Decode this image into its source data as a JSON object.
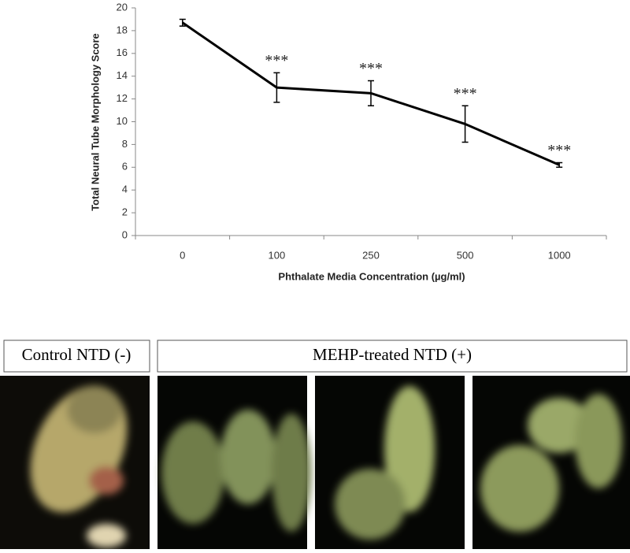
{
  "chart_data": {
    "type": "line",
    "x_label": "Phthalate Media Concentration (µg/ml)",
    "y_label": "Total Neural Tube Morphology Score",
    "categories": [
      "0",
      "100",
      "250",
      "500",
      "1000"
    ],
    "series": [
      {
        "color": "#000000",
        "values": [
          18.7,
          13.0,
          12.5,
          9.8,
          6.2
        ],
        "errors": [
          0.3,
          1.3,
          1.1,
          1.6,
          0.2
        ]
      }
    ],
    "ylim": [
      0,
      20
    ],
    "yticks": [
      0,
      2,
      4,
      6,
      8,
      10,
      12,
      14,
      16,
      18,
      20
    ],
    "annotations": [
      {
        "x": "100",
        "text": "***"
      },
      {
        "x": "250",
        "text": "***"
      },
      {
        "x": "500",
        "text": "***"
      },
      {
        "x": "1000",
        "text": "***"
      }
    ]
  },
  "panels": {
    "labels": [
      "Control NTD (-)",
      "MEHP-treated NTD (+)"
    ]
  }
}
